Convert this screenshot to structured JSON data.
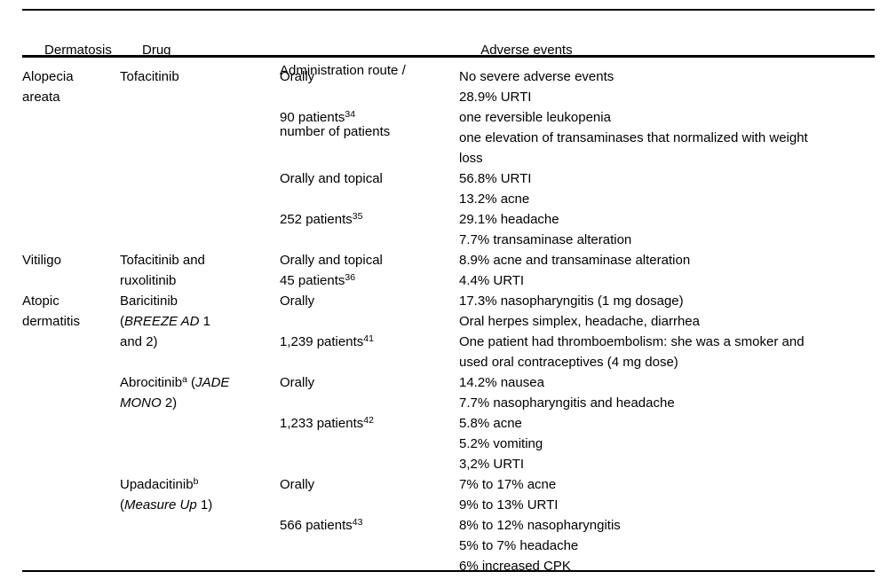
{
  "page": {
    "background_color": "#ffffff",
    "text_color": "#000000",
    "rule_color": "#000000"
  },
  "table": {
    "header": {
      "dermatosis": "Dermatosis",
      "drug": "Drug",
      "route_line1": "Administration route /",
      "route_line2": "number of patients",
      "adverse_events": "Adverse events"
    },
    "lines": [
      {
        "cells": [
          [
            {
              "t": "Alopecia"
            }
          ],
          [
            {
              "t": "Tofacitinib"
            }
          ],
          [
            {
              "t": "Orally"
            }
          ],
          [
            {
              "t": "No severe adverse events"
            }
          ]
        ]
      },
      {
        "cells": [
          [
            {
              "t": "areata"
            }
          ],
          [],
          [],
          [
            {
              "t": "28.9% URTI"
            }
          ]
        ]
      },
      {
        "cells": [
          [],
          [],
          [
            {
              "t": "90 patients"
            },
            {
              "t": "34",
              "sup": true
            }
          ],
          [
            {
              "t": "one reversible leukopenia"
            }
          ]
        ]
      },
      {
        "cells": [
          [],
          [],
          [],
          [
            {
              "t": "one elevation of transaminases that normalized with weight"
            }
          ]
        ]
      },
      {
        "cells": [
          [],
          [],
          [],
          [
            {
              "t": "loss"
            }
          ]
        ]
      },
      {
        "cells": [
          [],
          [],
          [
            {
              "t": "Orally and topical"
            }
          ],
          [
            {
              "t": "56.8% URTI"
            }
          ]
        ]
      },
      {
        "cells": [
          [],
          [],
          [],
          [
            {
              "t": "13.2% acne"
            }
          ]
        ]
      },
      {
        "cells": [
          [],
          [],
          [
            {
              "t": "252 patients"
            },
            {
              "t": "35",
              "sup": true
            }
          ],
          [
            {
              "t": "29.1% headache"
            }
          ]
        ]
      },
      {
        "cells": [
          [],
          [],
          [],
          [
            {
              "t": "7.7% transaminase alteration"
            }
          ]
        ]
      },
      {
        "cells": [
          [
            {
              "t": "Vitiligo"
            }
          ],
          [
            {
              "t": "Tofacitinib and"
            }
          ],
          [
            {
              "t": "Orally and topical"
            }
          ],
          [
            {
              "t": "8.9% acne and transaminase alteration"
            }
          ]
        ]
      },
      {
        "cells": [
          [],
          [
            {
              "t": "ruxolitinib"
            }
          ],
          [
            {
              "t": "45 patients"
            },
            {
              "t": "36",
              "sup": true
            }
          ],
          [
            {
              "t": "4.4% URTI"
            }
          ]
        ]
      },
      {
        "cells": [
          [
            {
              "t": "Atopic"
            }
          ],
          [
            {
              "t": "Baricitinib"
            }
          ],
          [
            {
              "t": "Orally"
            }
          ],
          [
            {
              "t": "17.3% nasopharyngitis (1 mg dosage)"
            }
          ]
        ]
      },
      {
        "cells": [
          [
            {
              "t": "dermatitis"
            }
          ],
          [
            {
              "t": "("
            },
            {
              "t": "BREEZE AD",
              "i": true
            },
            {
              "t": " 1"
            }
          ],
          [],
          [
            {
              "t": "Oral herpes simplex, headache, diarrhea"
            }
          ]
        ]
      },
      {
        "cells": [
          [],
          [
            {
              "t": "and 2)"
            }
          ],
          [
            {
              "t": "1,239 patients"
            },
            {
              "t": "41",
              "sup": true
            }
          ],
          [
            {
              "t": "One patient had thromboembolism: she was a smoker and"
            }
          ]
        ]
      },
      {
        "cells": [
          [],
          [],
          [],
          [
            {
              "t": "used oral contraceptives (4 mg dose)"
            }
          ]
        ]
      },
      {
        "cells": [
          [],
          [
            {
              "t": "Abrocitinib"
            },
            {
              "t": "a",
              "sup": true
            },
            {
              "t": " ("
            },
            {
              "t": "JADE",
              "i": true
            }
          ],
          [
            {
              "t": "Orally"
            }
          ],
          [
            {
              "t": "14.2% nausea"
            }
          ]
        ]
      },
      {
        "cells": [
          [],
          [
            {
              "t": "MONO",
              "i": true
            },
            {
              "t": " 2)"
            }
          ],
          [],
          [
            {
              "t": "7.7% nasopharyngitis and headache"
            }
          ]
        ]
      },
      {
        "cells": [
          [],
          [],
          [
            {
              "t": "1,233 patients"
            },
            {
              "t": "42",
              "sup": true
            }
          ],
          [
            {
              "t": "5.8% acne"
            }
          ]
        ]
      },
      {
        "cells": [
          [],
          [],
          [],
          [
            {
              "t": "5.2% vomiting"
            }
          ]
        ]
      },
      {
        "cells": [
          [],
          [],
          [],
          [
            {
              "t": "3,2% URTI"
            }
          ]
        ]
      },
      {
        "cells": [
          [],
          [
            {
              "t": "Upadacitinib"
            },
            {
              "t": "b",
              "sup": true
            }
          ],
          [
            {
              "t": "Orally"
            }
          ],
          [
            {
              "t": "7% to 17% acne"
            }
          ]
        ]
      },
      {
        "cells": [
          [],
          [
            {
              "t": "("
            },
            {
              "t": "Measure Up",
              "i": true
            },
            {
              "t": " 1)"
            }
          ],
          [],
          [
            {
              "t": "9% to 13% URTI"
            }
          ]
        ]
      },
      {
        "cells": [
          [],
          [],
          [
            {
              "t": "566 patients"
            },
            {
              "t": "43",
              "sup": true
            }
          ],
          [
            {
              "t": "8% to 12% nasopharyngitis"
            }
          ]
        ]
      },
      {
        "cells": [
          [],
          [],
          [],
          [
            {
              "t": "5% to 7% headache"
            }
          ]
        ]
      },
      {
        "cells": [
          [],
          [],
          [],
          [
            {
              "t": "6% increased CPK"
            }
          ]
        ]
      }
    ]
  }
}
